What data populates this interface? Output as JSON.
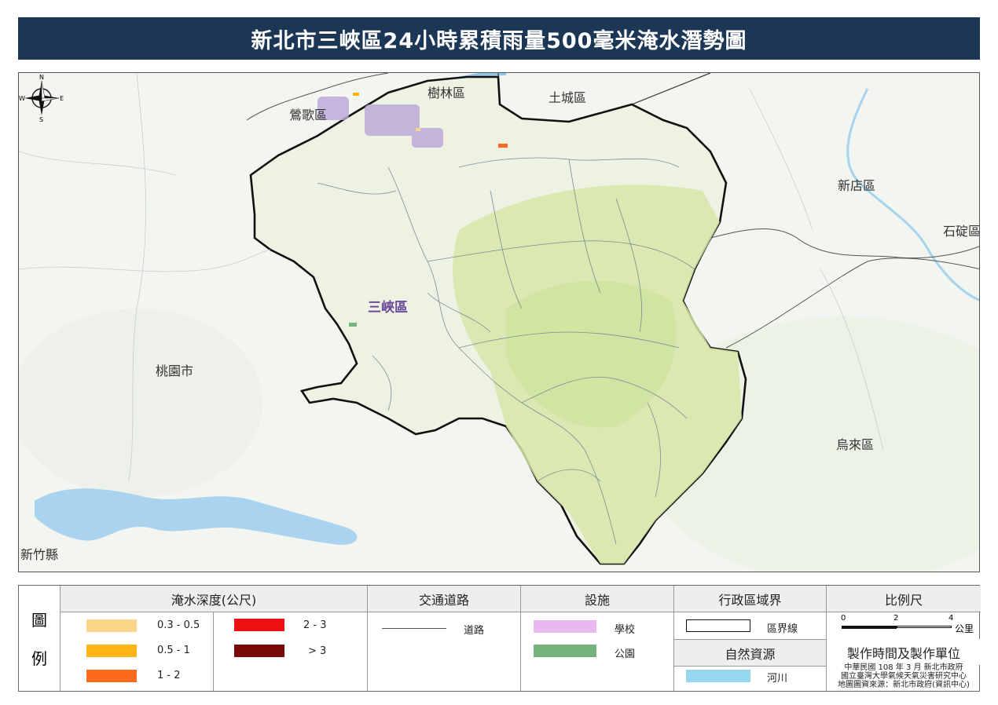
{
  "title": "新北市三峽區24小時累積雨量500毫米淹水潛勢圖",
  "map": {
    "labels": {
      "shulin": "樹林區",
      "tucheng": "土城區",
      "yingge": "鶯歌區",
      "xindian": "新店區",
      "shiding": "石碇區",
      "sanxia": "三峽區",
      "taoyuan": "桃園市",
      "wulai": "烏來區",
      "hsinchu": "新竹縣"
    },
    "compass": {
      "n": "N",
      "s": "S",
      "e": "E",
      "w": "W"
    }
  },
  "legend": {
    "tuli_1": "圖",
    "tuli_2": "例",
    "flood_depth_title": "淹水深度(公尺)",
    "depth_classes": [
      {
        "label": "0.3 - 0.5",
        "color": "#fdd58a"
      },
      {
        "label": "0.5 - 1",
        "color": "#fdb614"
      },
      {
        "label": "1 - 2",
        "color": "#fc6a1c"
      },
      {
        "label": "2 - 3",
        "color": "#ee1111"
      },
      {
        "label": "> 3",
        "color": "#7a0a0a"
      }
    ],
    "traffic_title": "交通道路",
    "road_label": "道路",
    "facility_title": "設施",
    "school_label": "學校",
    "school_color": "#e9b8ef",
    "park_label": "公園",
    "park_color": "#74b47c",
    "admin_title": "行政區域界",
    "boundary_label": "區界線",
    "natural_title": "自然資源",
    "river_label": "河川",
    "river_color": "#97d6ef",
    "scale_title": "比例尺",
    "scale_ticks": [
      "0",
      "2",
      "4"
    ],
    "scale_unit": "公里",
    "production_title": "製作時間及製作單位",
    "credit_1": "中華民國 108 年 3 月  新北市政府",
    "credit_2": "國立臺灣大學氣候天氣災害研究中心",
    "credit_3": "地圖圖資來源：新北市政府(資訊中心)"
  }
}
